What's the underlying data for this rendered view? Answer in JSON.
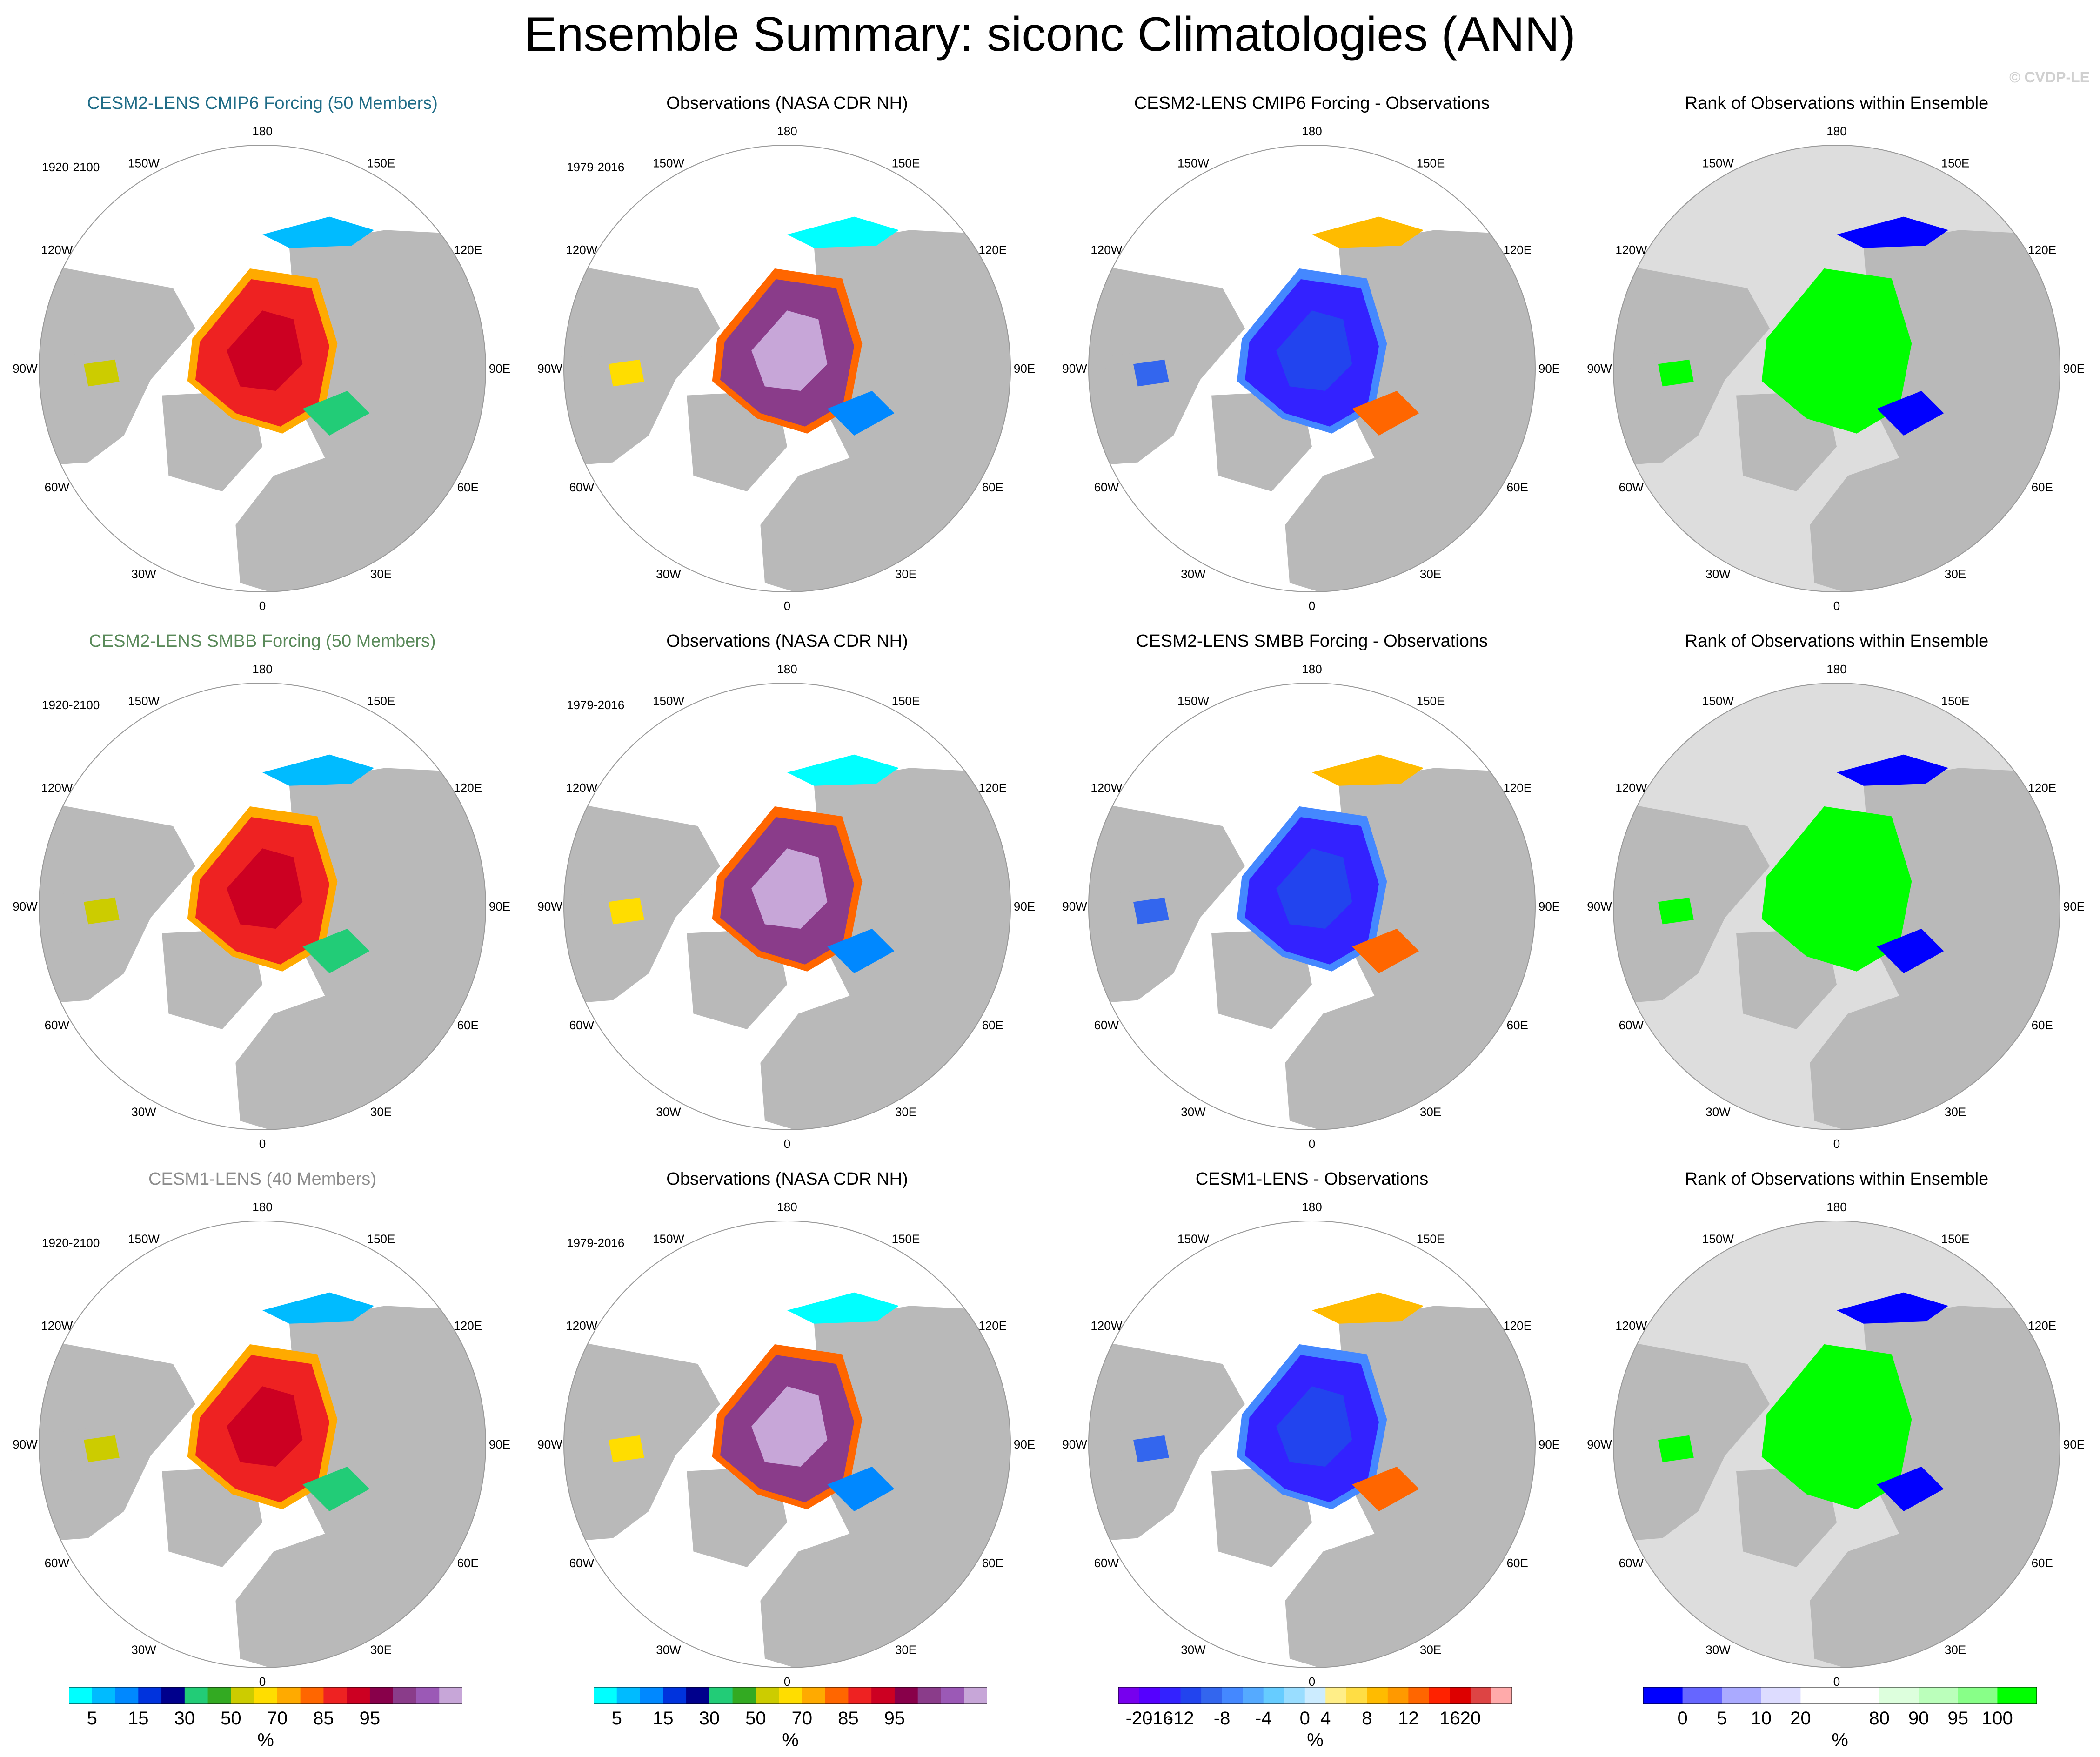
{
  "title": "Ensemble Summary: siconc Climatologies (ANN)",
  "watermark": "© CVDP-LE",
  "longitude_labels": [
    "180",
    "150E",
    "120E",
    "90E",
    "60E",
    "30E",
    "0",
    "30W",
    "60W",
    "90W",
    "120W",
    "150W"
  ],
  "colors": {
    "land": "#b9b9b9",
    "rank_background": "#dddddd",
    "title_cmip6": "#1f6c87",
    "title_smbb": "#5a8a5a",
    "title_cesm1": "#8c8c8c"
  },
  "rows": [
    {
      "panels": [
        {
          "type": "model",
          "title": "CESM2-LENS CMIP6 Forcing (50 Members)",
          "period": "1920-2100",
          "title_color": "#1f6c87"
        },
        {
          "type": "obs",
          "title": "Observations (NASA CDR NH)",
          "period": "1979-2016",
          "title_color": "#000000"
        },
        {
          "type": "diff",
          "title": "CESM2-LENS CMIP6 Forcing - Observations",
          "period": "",
          "title_color": "#000000"
        },
        {
          "type": "rank",
          "title": "Rank of Observations within Ensemble",
          "period": "",
          "title_color": "#000000"
        }
      ]
    },
    {
      "panels": [
        {
          "type": "model",
          "title": "CESM2-LENS SMBB Forcing (50 Members)",
          "period": "1920-2100",
          "title_color": "#5a8a5a"
        },
        {
          "type": "obs",
          "title": "Observations (NASA CDR NH)",
          "period": "1979-2016",
          "title_color": "#000000"
        },
        {
          "type": "diff",
          "title": "CESM2-LENS SMBB Forcing - Observations",
          "period": "",
          "title_color": "#000000"
        },
        {
          "type": "rank",
          "title": "Rank of Observations within Ensemble",
          "period": "",
          "title_color": "#000000"
        }
      ]
    },
    {
      "panels": [
        {
          "type": "model",
          "title": "CESM1-LENS (40 Members)",
          "period": "1920-2100",
          "title_color": "#8c8c8c"
        },
        {
          "type": "obs",
          "title": "Observations (NASA CDR NH)",
          "period": "1979-2016",
          "title_color": "#000000"
        },
        {
          "type": "diff",
          "title": "CESM1-LENS - Observations",
          "period": "",
          "title_color": "#000000"
        },
        {
          "type": "rank",
          "title": "Rank of Observations within Ensemble",
          "period": "",
          "title_color": "#000000"
        }
      ]
    }
  ],
  "colorbars": [
    {
      "unit": "%",
      "colors": [
        "#00ffff",
        "#00bbff",
        "#0088ff",
        "#0033dd",
        "#00008c",
        "#22cc77",
        "#33aa22",
        "#cccc00",
        "#ffdd00",
        "#ffaa00",
        "#ff6600",
        "#ee2222",
        "#cc0022",
        "#88004a",
        "#8a3c8a",
        "#9b59b6",
        "#c7a6d8"
      ],
      "ticks": [
        {
          "label": "5",
          "after": 1
        },
        {
          "label": "15",
          "after": 3
        },
        {
          "label": "30",
          "after": 5
        },
        {
          "label": "50",
          "after": 7
        },
        {
          "label": "70",
          "after": 9
        },
        {
          "label": "85",
          "after": 11
        },
        {
          "label": "95",
          "after": 13
        }
      ]
    },
    {
      "unit": "%",
      "colors": [
        "#00ffff",
        "#00bbff",
        "#0088ff",
        "#0033dd",
        "#00008c",
        "#22cc77",
        "#33aa22",
        "#cccc00",
        "#ffdd00",
        "#ffaa00",
        "#ff6600",
        "#ee2222",
        "#cc0022",
        "#88004a",
        "#8a3c8a",
        "#9b59b6",
        "#c7a6d8"
      ],
      "ticks": [
        {
          "label": "5",
          "after": 1
        },
        {
          "label": "15",
          "after": 3
        },
        {
          "label": "30",
          "after": 5
        },
        {
          "label": "50",
          "after": 7
        },
        {
          "label": "70",
          "after": 9
        },
        {
          "label": "85",
          "after": 11
        },
        {
          "label": "95",
          "after": 13
        }
      ]
    },
    {
      "unit": "%",
      "colors": [
        "#7700ee",
        "#5500ff",
        "#3322ff",
        "#2244ee",
        "#3366ee",
        "#4488ff",
        "#55aaff",
        "#66ccff",
        "#99ddff",
        "#ccecff",
        "#ffee88",
        "#ffdd44",
        "#ffbb00",
        "#ff9900",
        "#ff6600",
        "#ff2200",
        "#dd0000",
        "#dd4444",
        "#ffaaaa"
      ],
      "ticks": [
        {
          "label": "-20",
          "after": 1
        },
        {
          "label": "-16",
          "after": 2
        },
        {
          "label": "-12",
          "after": 3
        },
        {
          "label": "-8",
          "after": 5
        },
        {
          "label": "-4",
          "after": 7
        },
        {
          "label": "0",
          "after": 9
        },
        {
          "label": "4",
          "after": 10
        },
        {
          "label": "8",
          "after": 12
        },
        {
          "label": "12",
          "after": 14
        },
        {
          "label": "16",
          "after": 16
        },
        {
          "label": "20",
          "after": 17
        }
      ]
    },
    {
      "unit": "%",
      "colors": [
        "#0000ff",
        "#6666ff",
        "#aaaaff",
        "#dddcff",
        "#ffffff",
        "#ffffff",
        "#ddffdd",
        "#bbffbb",
        "#88ff88",
        "#00ff00"
      ],
      "ticks": [
        {
          "label": "0",
          "after": 1
        },
        {
          "label": "5",
          "after": 2
        },
        {
          "label": "10",
          "after": 3
        },
        {
          "label": "20",
          "after": 4
        },
        {
          "label": "80",
          "after": 6
        },
        {
          "label": "90",
          "after": 7
        },
        {
          "label": "95",
          "after": 8
        },
        {
          "label": "100",
          "after": 9
        }
      ]
    }
  ]
}
